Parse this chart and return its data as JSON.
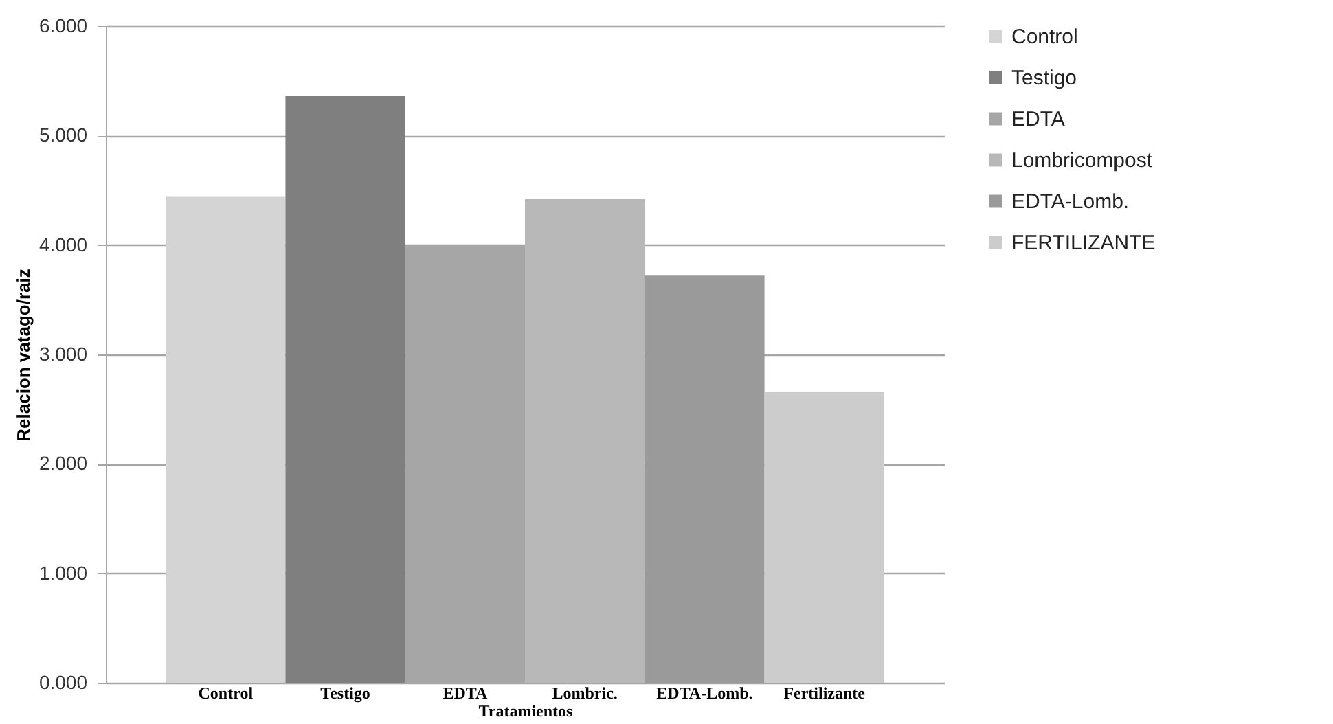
{
  "chart_data": {
    "type": "bar",
    "xlabel": "Tratamientos",
    "ylabel": "Relacion vatago/raiz",
    "categories": [
      "Control",
      "Testigo",
      "EDTA",
      "Lombric.",
      "EDTA-Lomb.",
      "Fertilizante"
    ],
    "series": [
      {
        "name": "Control",
        "color": "#d4d4d4",
        "values": [
          4.44,
          null,
          null,
          null,
          null,
          null
        ]
      },
      {
        "name": "Testigo",
        "color": "#7f7f7f",
        "values": [
          null,
          5.36,
          null,
          null,
          null,
          null
        ]
      },
      {
        "name": "EDTA",
        "color": "#a6a6a6",
        "values": [
          null,
          null,
          4.0,
          null,
          null,
          null
        ]
      },
      {
        "name": "Lombricompost",
        "color": "#b8b8b8",
        "values": [
          null,
          null,
          null,
          4.42,
          null,
          null
        ]
      },
      {
        "name": "EDTA-Lomb.",
        "color": "#9a9a9a",
        "values": [
          null,
          null,
          null,
          null,
          3.72,
          null
        ]
      },
      {
        "name": "FERTILIZANTE",
        "color": "#cccccc",
        "values": [
          null,
          null,
          null,
          null,
          null,
          2.66
        ]
      }
    ],
    "ylim": [
      0,
      6
    ],
    "yticks": [
      {
        "value": 0,
        "label": "0.000"
      },
      {
        "value": 1,
        "label": "1.000"
      },
      {
        "value": 2,
        "label": "2.000"
      },
      {
        "value": 3,
        "label": "3.000"
      },
      {
        "value": 4,
        "label": "4.000"
      },
      {
        "value": 5,
        "label": "5.000"
      },
      {
        "value": 6,
        "label": "6.000"
      }
    ],
    "grid": "y",
    "legend": "right"
  }
}
